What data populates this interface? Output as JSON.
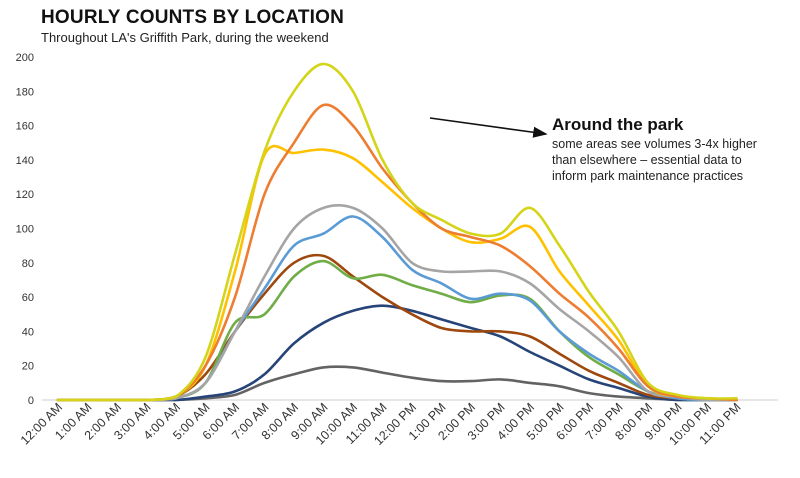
{
  "chart_data": {
    "type": "line",
    "title": "HOURLY COUNTS BY LOCATION",
    "subtitle": "Throughout LA's Griffith Park, during the weekend",
    "ylim": [
      0,
      200
    ],
    "yticks": [
      "0",
      "20",
      "40",
      "60",
      "80",
      "100",
      "120",
      "140",
      "160",
      "180",
      "200"
    ],
    "categories": [
      "12:00 AM",
      "1:00 AM",
      "2:00 AM",
      "3:00 AM",
      "4:00 AM",
      "5:00 AM",
      "6:00 AM",
      "7:00 AM",
      "8:00 AM",
      "9:00 AM",
      "10:00 AM",
      "11:00 AM",
      "12:00 PM",
      "1:00 PM",
      "2:00 PM",
      "3:00 PM",
      "4:00 PM",
      "5:00 PM",
      "6:00 PM",
      "7:00 PM",
      "8:00 PM",
      "9:00 PM",
      "10:00 PM",
      "11:00 PM"
    ],
    "grid": false,
    "series": [
      {
        "color": "#d4d418",
        "values": [
          0,
          0,
          0,
          0,
          2,
          25,
          85,
          145,
          180,
          196,
          180,
          140,
          115,
          105,
          97,
          97,
          112,
          90,
          63,
          40,
          10,
          3,
          1,
          1
        ]
      },
      {
        "color": "#ed7d31",
        "values": [
          0,
          0,
          0,
          0,
          2,
          20,
          60,
          120,
          150,
          172,
          160,
          135,
          115,
          100,
          95,
          90,
          78,
          62,
          48,
          30,
          8,
          2,
          1,
          0
        ]
      },
      {
        "color": "#ffc000",
        "values": [
          0,
          0,
          0,
          0,
          2,
          20,
          75,
          143,
          144,
          146,
          141,
          127,
          112,
          100,
          92,
          94,
          101,
          75,
          55,
          35,
          8,
          2,
          1,
          0
        ]
      },
      {
        "color": "#a5a5a5",
        "values": [
          0,
          0,
          0,
          0,
          1,
          10,
          40,
          72,
          100,
          112,
          112,
          100,
          80,
          75,
          75,
          75,
          68,
          53,
          40,
          25,
          5,
          2,
          0,
          0
        ]
      },
      {
        "color": "#5b9bd5",
        "values": [
          0,
          0,
          0,
          0,
          1,
          10,
          40,
          65,
          90,
          97,
          107,
          95,
          76,
          68,
          59,
          62,
          58,
          40,
          27,
          17,
          5,
          1,
          0,
          0
        ]
      },
      {
        "color": "#70ad47",
        "values": [
          0,
          0,
          0,
          0,
          1,
          10,
          45,
          50,
          72,
          81,
          71,
          73,
          67,
          62,
          57,
          61,
          59,
          40,
          25,
          15,
          5,
          1,
          0,
          0
        ]
      },
      {
        "color": "#9e480e",
        "values": [
          0,
          0,
          0,
          0,
          2,
          15,
          40,
          62,
          80,
          84,
          72,
          60,
          50,
          42,
          40,
          40,
          37,
          27,
          17,
          10,
          3,
          1,
          0,
          0
        ]
      },
      {
        "color": "#264478",
        "values": [
          0,
          0,
          0,
          0,
          0,
          2,
          5,
          15,
          33,
          45,
          52,
          55,
          52,
          47,
          42,
          37,
          28,
          20,
          12,
          7,
          2,
          0,
          0,
          0
        ]
      },
      {
        "color": "#636363",
        "values": [
          0,
          0,
          0,
          0,
          0,
          1,
          3,
          10,
          15,
          19,
          19,
          16,
          13,
          11,
          11,
          12,
          10,
          8,
          4,
          2,
          1,
          0,
          0,
          0
        ]
      }
    ],
    "annotation": {
      "title": "Around the park",
      "lines": [
        "some areas see volumes 3-4x higher",
        "than elsewhere – essential data to",
        "inform park maintenance practices"
      ]
    }
  }
}
